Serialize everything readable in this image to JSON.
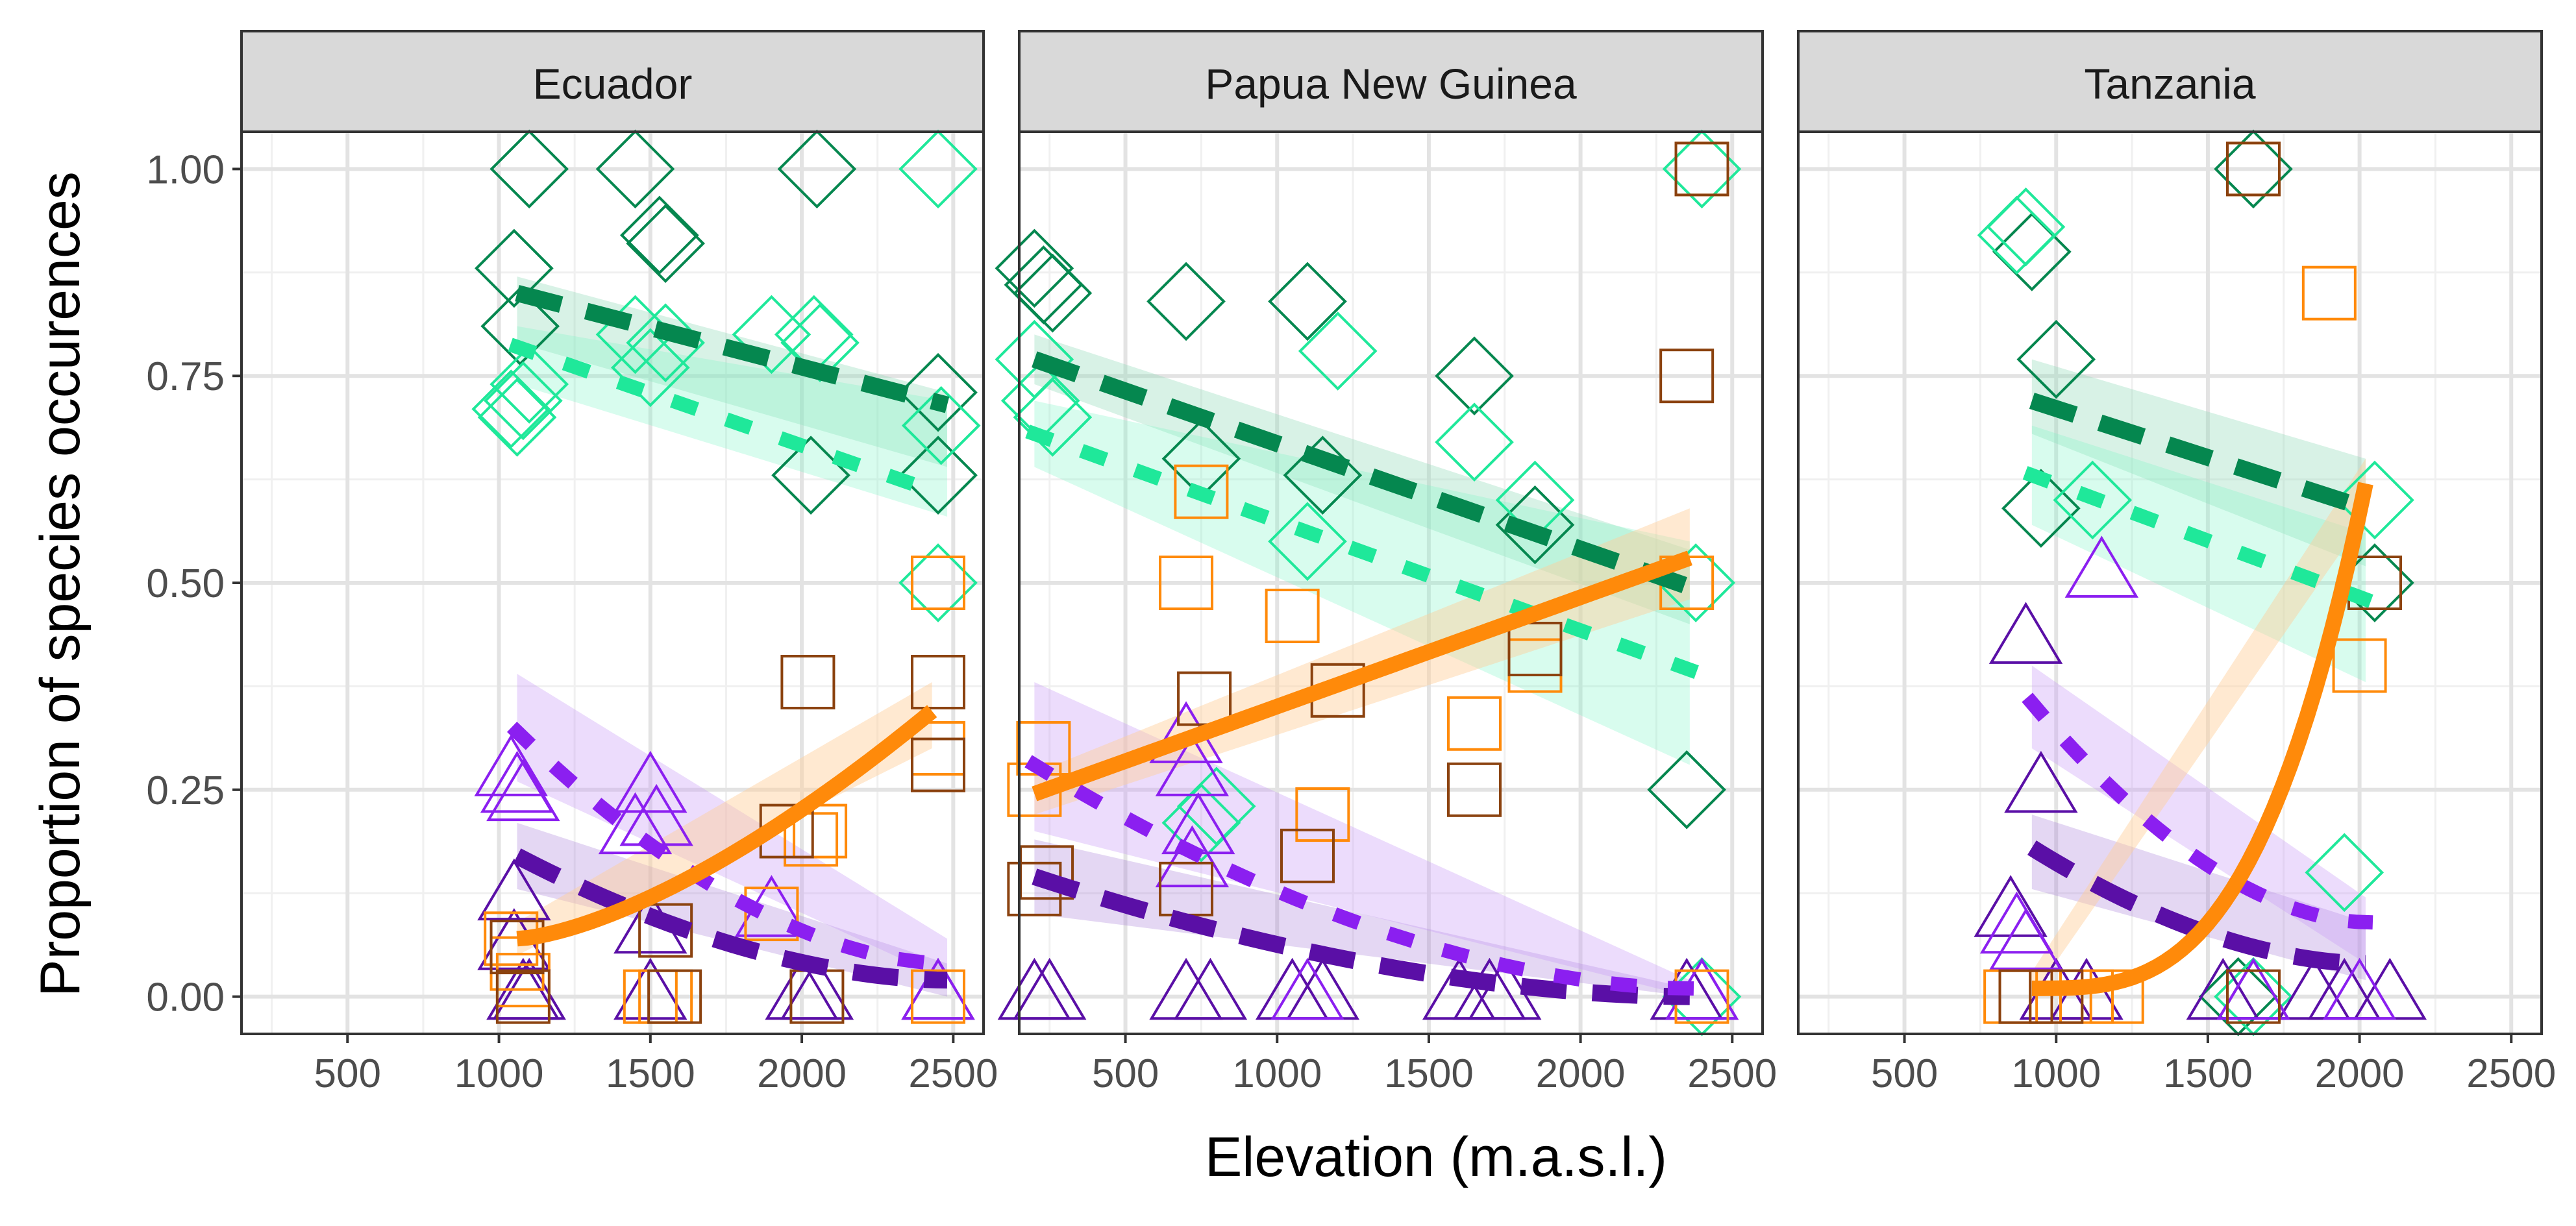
{
  "chart_data": {
    "type": "scatter",
    "xlabel": "Elevation (m.a.s.l.)",
    "ylabel": "Proportion of species occurences",
    "y_ticks": [
      "0.00",
      "0.25",
      "0.50",
      "0.75",
      "1.00"
    ],
    "ylim": [
      -0.045,
      1.045
    ],
    "grid": true,
    "legend": "none",
    "colors": {
      "green_dark": "#05874f",
      "green_light": "#1fe89a",
      "purple_dark": "#5a0fa6",
      "purple_light": "#8b1ff0",
      "orange": "#ff8a0a",
      "brown": "#8b420f"
    },
    "panels": [
      {
        "title": "Ecuador",
        "xlim": [
          150,
          2600
        ],
        "x_ticks": [
          "500",
          "1000",
          "1500",
          "2000",
          "2500"
        ],
        "x_tick_values": [
          500,
          1000,
          1500,
          2000,
          2500
        ],
        "points": {
          "green_dark_diamond": [
            [
              1050,
              0.88
            ],
            [
              1070,
              0.81
            ],
            [
              1100,
              1.0
            ],
            [
              1450,
              1.0
            ],
            [
              1530,
              0.92
            ],
            [
              1550,
              0.91
            ],
            [
              2050,
              1.0
            ],
            [
              2030,
              0.63
            ],
            [
              2450,
              0.73
            ],
            [
              2450,
              0.63
            ]
          ],
          "green_light_diamond": [
            [
              1040,
              0.71
            ],
            [
              1060,
              0.7
            ],
            [
              1080,
              0.72
            ],
            [
              1100,
              0.74
            ],
            [
              1450,
              0.8
            ],
            [
              1500,
              0.76
            ],
            [
              1550,
              0.79
            ],
            [
              1900,
              0.8
            ],
            [
              2040,
              0.8
            ],
            [
              2060,
              0.79
            ],
            [
              2450,
              1.0
            ],
            [
              2460,
              0.69
            ],
            [
              2450,
              0.5
            ]
          ],
          "purple_dark_triangle": [
            [
              1050,
              0.12
            ],
            [
              1050,
              0.06
            ],
            [
              1080,
              0.0
            ],
            [
              1100,
              0.0
            ],
            [
              1500,
              0.08
            ],
            [
              1500,
              0.0
            ],
            [
              2000,
              0.0
            ],
            [
              2050,
              0.0
            ],
            [
              2450,
              0.0
            ]
          ],
          "purple_light_triangle": [
            [
              1040,
              0.27
            ],
            [
              1060,
              0.25
            ],
            [
              1080,
              0.24
            ],
            [
              1450,
              0.2
            ],
            [
              1500,
              0.25
            ],
            [
              1520,
              0.21
            ],
            [
              1900,
              0.1
            ],
            [
              2450,
              0.0
            ]
          ],
          "orange_square": [
            [
              1040,
              0.07
            ],
            [
              1060,
              0.04
            ],
            [
              1080,
              0.02
            ],
            [
              1500,
              0.0
            ],
            [
              1550,
              0.0
            ],
            [
              1900,
              0.1
            ],
            [
              2030,
              0.19
            ],
            [
              2060,
              0.2
            ],
            [
              2450,
              0.3
            ],
            [
              2450,
              0.5
            ],
            [
              2450,
              0.0
            ]
          ],
          "brown_square": [
            [
              1060,
              0.06
            ],
            [
              1080,
              0.0
            ],
            [
              1550,
              0.08
            ],
            [
              1580,
              0.0
            ],
            [
              2020,
              0.38
            ],
            [
              1950,
              0.2
            ],
            [
              2050,
              0.0
            ],
            [
              2450,
              0.38
            ],
            [
              2450,
              0.28
            ]
          ]
        },
        "trends": {
          "green_dark": {
            "x": [
              1060,
              2480
            ],
            "y": [
              0.85,
              0.715
            ],
            "band": [
              0.87,
              0.79,
              0.73,
              0.64
            ]
          },
          "green_light": {
            "x": [
              1060,
              2480
            ],
            "y": [
              0.785,
              0.605
            ],
            "band": [
              0.81,
              0.74,
              0.72,
              0.58
            ]
          },
          "purple_dark": {
            "x": [
              1060,
              2480
            ],
            "y": [
              0.17,
              0.02
            ],
            "band": [
              0.21,
              0.13,
              0.04,
              0.0
            ]
          },
          "purple_light": {
            "x": [
              1060,
              2480
            ],
            "y": [
              0.32,
              0.04
            ],
            "band": [
              0.39,
              0.26,
              0.07,
              0.02
            ]
          },
          "orange": {
            "x": [
              1060,
              2430
            ],
            "y": [
              0.07,
              0.345
            ],
            "band": [
              0.09,
              0.05,
              0.38,
              0.3
            ]
          }
        }
      },
      {
        "title": "Papua New Guinea",
        "xlim": [
          150,
          2600
        ],
        "x_ticks": [
          "500",
          "1000",
          "1500",
          "2000",
          "2500"
        ],
        "x_tick_values": [
          500,
          1000,
          1500,
          2000,
          2500
        ],
        "points": {
          "green_dark_diamond": [
            [
              200,
              0.88
            ],
            [
              230,
              0.86
            ],
            [
              260,
              0.85
            ],
            [
              700,
              0.84
            ],
            [
              1100,
              0.84
            ],
            [
              1150,
              0.63
            ],
            [
              750,
              0.65
            ],
            [
              1650,
              0.75
            ],
            [
              1850,
              0.57
            ],
            [
              2350,
              0.25
            ]
          ],
          "green_light_diamond": [
            [
              200,
              0.77
            ],
            [
              220,
              0.72
            ],
            [
              260,
              0.7
            ],
            [
              1200,
              0.78
            ],
            [
              1100,
              0.55
            ],
            [
              1650,
              0.67
            ],
            [
              1850,
              0.6
            ],
            [
              2400,
              1.0
            ],
            [
              2380,
              0.5
            ],
            [
              800,
              0.23
            ],
            [
              750,
              0.21
            ],
            [
              2400,
              0.0
            ]
          ],
          "purple_dark_triangle": [
            [
              200,
              0.0
            ],
            [
              250,
              0.0
            ],
            [
              700,
              0.0
            ],
            [
              780,
              0.0
            ],
            [
              1050,
              0.0
            ],
            [
              1150,
              0.0
            ],
            [
              1600,
              0.0
            ],
            [
              1700,
              0.0
            ],
            [
              1750,
              0.0
            ],
            [
              2350,
              0.0
            ],
            [
              2400,
              0.0
            ]
          ],
          "purple_light_triangle": [
            [
              700,
              0.31
            ],
            [
              720,
              0.27
            ],
            [
              740,
              0.2
            ],
            [
              720,
              0.16
            ],
            [
              1100,
              0.0
            ],
            [
              2400,
              0.0
            ]
          ],
          "orange_square": [
            [
              200,
              0.25
            ],
            [
              230,
              0.3
            ],
            [
              700,
              0.5
            ],
            [
              750,
              0.61
            ],
            [
              1050,
              0.46
            ],
            [
              1150,
              0.22
            ],
            [
              1650,
              0.33
            ],
            [
              1850,
              0.4
            ],
            [
              2350,
              0.5
            ],
            [
              2400,
              1.0
            ],
            [
              2400,
              0.0
            ]
          ],
          "brown_square": [
            [
              200,
              0.13
            ],
            [
              240,
              0.15
            ],
            [
              700,
              0.13
            ],
            [
              760,
              0.36
            ],
            [
              1100,
              0.17
            ],
            [
              1200,
              0.37
            ],
            [
              1650,
              0.25
            ],
            [
              1850,
              0.42
            ],
            [
              2350,
              0.75
            ],
            [
              2400,
              1.0
            ]
          ]
        },
        "trends": {
          "green_dark": {
            "x": [
              200,
              2360
            ],
            "y": [
              0.77,
              0.495
            ],
            "band": [
              0.8,
              0.74,
              0.54,
              0.45
            ]
          },
          "green_light": {
            "x": [
              200,
              2360
            ],
            "y": [
              0.68,
              0.395
            ],
            "band": [
              0.72,
              0.64,
              0.55,
              0.28
            ]
          },
          "purple_dark": {
            "x": [
              200,
              2360
            ],
            "y": [
              0.145,
              0.0
            ],
            "band": [
              0.19,
              0.1,
              0.01,
              0.0
            ]
          },
          "purple_light": {
            "x": [
              200,
              2360
            ],
            "y": [
              0.28,
              0.01
            ],
            "band": [
              0.38,
              0.2,
              0.02,
              0.0
            ]
          },
          "orange": {
            "x": [
              200,
              2360
            ],
            "y": [
              0.245,
              0.53
            ],
            "band": [
              0.27,
              0.22,
              0.59,
              0.48
            ]
          }
        }
      },
      {
        "title": "Tanzania",
        "xlim": [
          150,
          2600
        ],
        "x_ticks": [
          "500",
          "1000",
          "1500",
          "2000",
          "2500"
        ],
        "x_tick_values": [
          500,
          1000,
          1500,
          2000,
          2500
        ],
        "points": {
          "green_dark_diamond": [
            [
              920,
              0.9
            ],
            [
              1000,
              0.77
            ],
            [
              950,
              0.59
            ],
            [
              1650,
              1.0
            ],
            [
              1600,
              0.0
            ],
            [
              2050,
              0.5
            ]
          ],
          "green_light_diamond": [
            [
              870,
              0.92
            ],
            [
              900,
              0.93
            ],
            [
              1120,
              0.6
            ],
            [
              2050,
              0.6
            ],
            [
              1950,
              0.15
            ],
            [
              1650,
              0.0
            ]
          ],
          "purple_dark_triangle": [
            [
              900,
              0.43
            ],
            [
              950,
              0.25
            ],
            [
              850,
              0.1
            ],
            [
              1000,
              0.0
            ],
            [
              1100,
              0.0
            ],
            [
              1550,
              0.0
            ],
            [
              1650,
              0.0
            ],
            [
              1850,
              0.0
            ],
            [
              1950,
              0.0
            ],
            [
              2100,
              0.0
            ]
          ],
          "purple_light_triangle": [
            [
              870,
              0.08
            ],
            [
              900,
              0.06
            ],
            [
              1150,
              0.51
            ],
            [
              1650,
              0.0
            ],
            [
              2000,
              0.0
            ]
          ],
          "orange_square": [
            [
              850,
              0.0
            ],
            [
              900,
              0.0
            ],
            [
              1000,
              0.0
            ],
            [
              1100,
              0.0
            ],
            [
              1200,
              0.0
            ],
            [
              1650,
              1.0
            ],
            [
              1900,
              0.85
            ],
            [
              2000,
              0.4
            ],
            [
              2050,
              0.5
            ]
          ],
          "brown_square": [
            [
              900,
              0.0
            ],
            [
              1000,
              0.0
            ],
            [
              1650,
              0.0
            ],
            [
              1650,
              1.0
            ],
            [
              2050,
              0.5
            ]
          ]
        },
        "trends": {
          "green_dark": {
            "x": [
              920,
              2020
            ],
            "y": [
              0.72,
              0.59
            ],
            "band": [
              0.77,
              0.68,
              0.65,
              0.52
            ]
          },
          "green_light": {
            "x": [
              920,
              2020
            ],
            "y": [
              0.63,
              0.48
            ],
            "band": [
              0.69,
              0.57,
              0.56,
              0.38
            ]
          },
          "purple_dark": {
            "x": [
              920,
              2020
            ],
            "y": [
              0.18,
              0.04
            ],
            "band": [
              0.22,
              0.13,
              0.09,
              0.02
            ]
          },
          "purple_light": {
            "x": [
              920,
              2020
            ],
            "y": [
              0.355,
              0.09
            ],
            "band": [
              0.4,
              0.3,
              0.12,
              0.04
            ]
          },
          "orange": {
            "x": [
              920,
              2020
            ],
            "y": [
              0.01,
              0.62
            ],
            "band": [
              0.03,
              0.0,
              0.65,
              0.58
            ]
          }
        }
      }
    ]
  }
}
